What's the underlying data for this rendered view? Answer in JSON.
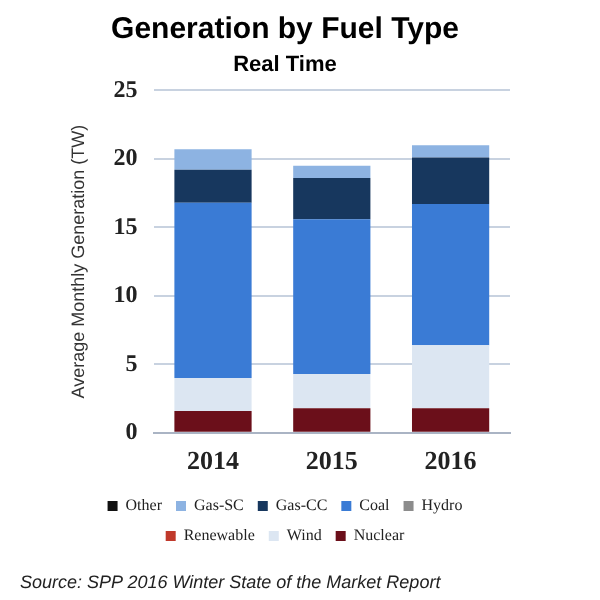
{
  "chart_data": {
    "type": "bar",
    "title": "Generation by Fuel Type",
    "subtitle": "Real Time",
    "ylabel": "Average Monthly Generation (TW)",
    "categories": [
      "2014",
      "2015",
      "2016"
    ],
    "stacked": true,
    "series": [
      {
        "name": "Nuclear",
        "color": "#6b0f1a",
        "values": [
          1.6,
          1.8,
          1.8
        ]
      },
      {
        "name": "Wind",
        "color": "#dce6f2",
        "values": [
          2.4,
          2.5,
          4.6
        ]
      },
      {
        "name": "Renewable",
        "color": "#c0392b",
        "values": [
          0,
          0,
          0
        ]
      },
      {
        "name": "Hydro",
        "color": "#8c8c8c",
        "values": [
          0,
          0,
          0
        ]
      },
      {
        "name": "Coal",
        "color": "#3a7bd5",
        "values": [
          12.8,
          11.3,
          10.3
        ]
      },
      {
        "name": "Gas-CC",
        "color": "#17375e",
        "values": [
          2.4,
          3.0,
          3.4
        ]
      },
      {
        "name": "Gas-SC",
        "color": "#8db3e2",
        "values": [
          1.5,
          0.9,
          0.9
        ]
      },
      {
        "name": "Other",
        "color": "#111111",
        "values": [
          0,
          0,
          0
        ]
      }
    ],
    "ylim": [
      0,
      25
    ],
    "yticks": [
      0,
      5,
      10,
      15,
      20,
      25
    ],
    "grid": "y",
    "legend": "bottom",
    "annotations": [
      "Source: SPP 2016 Winter State of the Market Report"
    ]
  }
}
